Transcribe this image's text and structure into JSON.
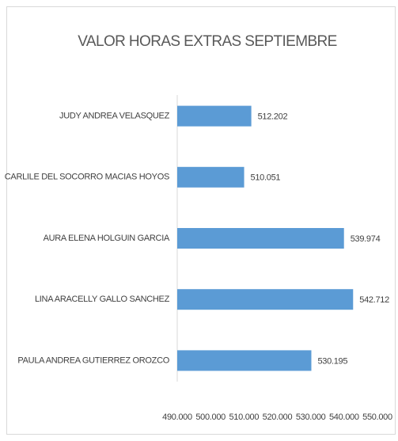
{
  "chart_data": {
    "type": "bar",
    "orientation": "horizontal",
    "title": "VALOR HORAS EXTRAS SEPTIEMBRE",
    "categories": [
      "JUDY ANDREA VELASQUEZ",
      "CARLILE DEL SOCORRO MACIAS HOYOS",
      "AURA ELENA HOLGUIN GARCIA",
      "LINA ARACELLY GALLO SANCHEZ",
      "PAULA ANDREA GUTIERREZ OROZCO"
    ],
    "values": [
      512202,
      510051,
      539974,
      542712,
      530195
    ],
    "value_labels": [
      "512.202",
      "510.051",
      "539.974",
      "542.712",
      "530.195"
    ],
    "color": "#5b9bd5",
    "xlim": [
      490000,
      550000
    ],
    "xticks": [
      {
        "value": 490000,
        "label": "490.000"
      },
      {
        "value": 500000,
        "label": "500.000"
      },
      {
        "value": 510000,
        "label": "510.000"
      },
      {
        "value": 520000,
        "label": "520.000"
      },
      {
        "value": 530000,
        "label": "530.000"
      },
      {
        "value": 540000,
        "label": "540.000"
      },
      {
        "value": 550000,
        "label": "550.000"
      }
    ],
    "grid": false
  }
}
